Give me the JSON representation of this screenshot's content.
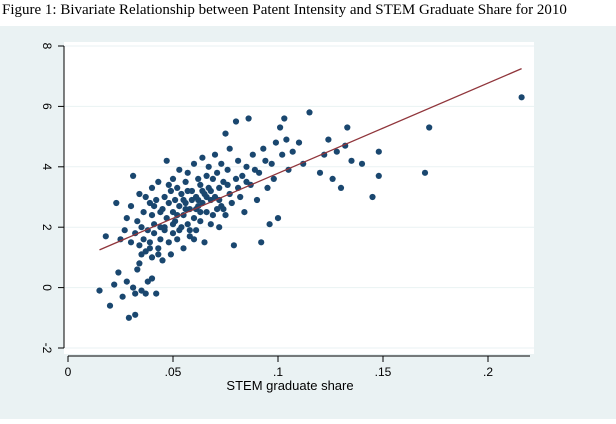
{
  "figure_title": "Figure 1: Bivariate Relationship between Patent Intensity and STEM Graduate Share for 2010",
  "chart_data": {
    "type": "scatter",
    "title": "Figure 1: Bivariate Relationship between Patent Intensity and STEM Graduate Share for 2010",
    "xlabel": "STEM graduate share",
    "ylabel": "",
    "xlim": [
      0,
      0.22
    ],
    "ylim": [
      -2,
      8
    ],
    "xticks": [
      0,
      0.05,
      0.1,
      0.15,
      0.2
    ],
    "xtick_labels": [
      "0",
      ".05",
      ".1",
      ".15",
      ".2"
    ],
    "yticks": [
      -2,
      0,
      2,
      4,
      6,
      8
    ],
    "ytick_labels": [
      "-2",
      "0",
      "2",
      "4",
      "6",
      "8"
    ],
    "grid": true,
    "legend": "none",
    "colors": {
      "background": "#eaf2f3",
      "points": "#1a476f",
      "fit_line": "#90353b",
      "grid": "#ffffff"
    },
    "fit_line": {
      "x": [
        0.015,
        0.216
      ],
      "y": [
        1.25,
        7.25
      ]
    },
    "points": [
      [
        0.015,
        -0.1
      ],
      [
        0.018,
        1.7
      ],
      [
        0.02,
        -0.6
      ],
      [
        0.022,
        0.1
      ],
      [
        0.023,
        2.8
      ],
      [
        0.024,
        0.5
      ],
      [
        0.025,
        1.6
      ],
      [
        0.026,
        -0.3
      ],
      [
        0.027,
        1.9
      ],
      [
        0.028,
        2.3
      ],
      [
        0.028,
        0.2
      ],
      [
        0.029,
        -1.0
      ],
      [
        0.03,
        1.5
      ],
      [
        0.03,
        2.7
      ],
      [
        0.031,
        0.0
      ],
      [
        0.031,
        3.7
      ],
      [
        0.032,
        -0.2
      ],
      [
        0.032,
        1.8
      ],
      [
        0.032,
        -0.9
      ],
      [
        0.033,
        2.2
      ],
      [
        0.033,
        0.6
      ],
      [
        0.034,
        3.1
      ],
      [
        0.034,
        1.4
      ],
      [
        0.035,
        2.0
      ],
      [
        0.035,
        -0.1
      ],
      [
        0.036,
        1.6
      ],
      [
        0.036,
        2.5
      ],
      [
        0.037,
        1.2
      ],
      [
        0.037,
        3.0
      ],
      [
        0.038,
        1.9
      ],
      [
        0.038,
        0.2
      ],
      [
        0.039,
        2.8
      ],
      [
        0.039,
        1.5
      ],
      [
        0.04,
        2.4
      ],
      [
        0.04,
        1.0
      ],
      [
        0.04,
        3.3
      ],
      [
        0.041,
        1.8
      ],
      [
        0.041,
        2.1
      ],
      [
        0.042,
        -0.2
      ],
      [
        0.042,
        2.9
      ],
      [
        0.043,
        1.3
      ],
      [
        0.043,
        3.5
      ],
      [
        0.044,
        2.0
      ],
      [
        0.044,
        1.6
      ],
      [
        0.045,
        2.6
      ],
      [
        0.045,
        0.9
      ],
      [
        0.046,
        3.0
      ],
      [
        0.046,
        1.9
      ],
      [
        0.047,
        4.2
      ],
      [
        0.047,
        2.3
      ],
      [
        0.048,
        1.5
      ],
      [
        0.048,
        2.8
      ],
      [
        0.049,
        3.2
      ],
      [
        0.049,
        1.1
      ],
      [
        0.05,
        2.5
      ],
      [
        0.05,
        3.6
      ],
      [
        0.05,
        1.8
      ],
      [
        0.051,
        2.9
      ],
      [
        0.051,
        2.2
      ],
      [
        0.052,
        3.3
      ],
      [
        0.052,
        1.6
      ],
      [
        0.053,
        2.7
      ],
      [
        0.053,
        3.9
      ],
      [
        0.054,
        2.0
      ],
      [
        0.054,
        3.1
      ],
      [
        0.055,
        2.4
      ],
      [
        0.055,
        1.3
      ],
      [
        0.056,
        3.5
      ],
      [
        0.056,
        2.8
      ],
      [
        0.057,
        2.1
      ],
      [
        0.057,
        3.8
      ],
      [
        0.058,
        2.6
      ],
      [
        0.058,
        1.7
      ],
      [
        0.059,
        3.2
      ],
      [
        0.059,
        2.9
      ],
      [
        0.06,
        4.1
      ],
      [
        0.06,
        2.3
      ],
      [
        0.061,
        3.0
      ],
      [
        0.061,
        1.9
      ],
      [
        0.062,
        3.6
      ],
      [
        0.062,
        2.7
      ],
      [
        0.063,
        2.2
      ],
      [
        0.063,
        3.4
      ],
      [
        0.064,
        4.3
      ],
      [
        0.064,
        2.8
      ],
      [
        0.065,
        3.1
      ],
      [
        0.065,
        1.5
      ],
      [
        0.066,
        3.7
      ],
      [
        0.066,
        2.5
      ],
      [
        0.067,
        3.3
      ],
      [
        0.067,
        4.0
      ],
      [
        0.068,
        2.9
      ],
      [
        0.068,
        2.1
      ],
      [
        0.069,
        3.6
      ],
      [
        0.07,
        3.0
      ],
      [
        0.07,
        4.4
      ],
      [
        0.071,
        2.6
      ],
      [
        0.071,
        3.8
      ],
      [
        0.072,
        2.0
      ],
      [
        0.072,
        3.3
      ],
      [
        0.073,
        4.1
      ],
      [
        0.073,
        2.7
      ],
      [
        0.074,
        3.5
      ],
      [
        0.075,
        5.1
      ],
      [
        0.075,
        2.4
      ],
      [
        0.076,
        3.9
      ],
      [
        0.077,
        3.1
      ],
      [
        0.077,
        4.6
      ],
      [
        0.078,
        2.8
      ],
      [
        0.079,
        1.4
      ],
      [
        0.08,
        3.6
      ],
      [
        0.08,
        5.5
      ],
      [
        0.081,
        4.2
      ],
      [
        0.082,
        3.0
      ],
      [
        0.083,
        3.7
      ],
      [
        0.084,
        2.5
      ],
      [
        0.085,
        4.0
      ],
      [
        0.086,
        5.6
      ],
      [
        0.087,
        3.4
      ],
      [
        0.088,
        4.4
      ],
      [
        0.09,
        2.9
      ],
      [
        0.091,
        3.8
      ],
      [
        0.092,
        1.5
      ],
      [
        0.093,
        4.6
      ],
      [
        0.095,
        3.3
      ],
      [
        0.096,
        2.1
      ],
      [
        0.097,
        4.1
      ],
      [
        0.098,
        3.6
      ],
      [
        0.099,
        4.8
      ],
      [
        0.1,
        2.3
      ],
      [
        0.101,
        5.3
      ],
      [
        0.102,
        4.4
      ],
      [
        0.103,
        5.6
      ],
      [
        0.104,
        4.9
      ],
      [
        0.105,
        3.9
      ],
      [
        0.107,
        4.5
      ],
      [
        0.11,
        4.8
      ],
      [
        0.112,
        4.1
      ],
      [
        0.115,
        5.8
      ],
      [
        0.12,
        3.8
      ],
      [
        0.122,
        4.4
      ],
      [
        0.124,
        4.9
      ],
      [
        0.126,
        3.6
      ],
      [
        0.128,
        4.5
      ],
      [
        0.13,
        3.3
      ],
      [
        0.132,
        4.7
      ],
      [
        0.133,
        5.3
      ],
      [
        0.135,
        4.2
      ],
      [
        0.14,
        4.1
      ],
      [
        0.145,
        3.0
      ],
      [
        0.148,
        3.7
      ],
      [
        0.148,
        4.5
      ],
      [
        0.17,
        3.8
      ],
      [
        0.172,
        5.3
      ],
      [
        0.216,
        6.3
      ],
      [
        0.043,
        1.1
      ],
      [
        0.052,
        2.4
      ],
      [
        0.058,
        1.9
      ],
      [
        0.063,
        2.5
      ],
      [
        0.069,
        2.4
      ],
      [
        0.074,
        2.6
      ],
      [
        0.046,
        2.0
      ],
      [
        0.055,
        2.9
      ],
      [
        0.061,
        2.6
      ],
      [
        0.066,
        3.0
      ],
      [
        0.048,
        3.4
      ],
      [
        0.057,
        3.2
      ],
      [
        0.064,
        3.2
      ],
      [
        0.041,
        2.7
      ],
      [
        0.053,
        1.9
      ],
      [
        0.06,
        1.6
      ],
      [
        0.035,
        1.1
      ],
      [
        0.039,
        1.3
      ],
      [
        0.044,
        2.5
      ],
      [
        0.05,
        2.1
      ],
      [
        0.056,
        2.6
      ],
      [
        0.062,
        2.9
      ],
      [
        0.068,
        3.2
      ],
      [
        0.072,
        2.9
      ],
      [
        0.076,
        3.4
      ],
      [
        0.081,
        3.3
      ],
      [
        0.085,
        3.5
      ],
      [
        0.089,
        3.9
      ],
      [
        0.094,
        4.2
      ],
      [
        0.037,
        -0.2
      ],
      [
        0.034,
        0.8
      ],
      [
        0.04,
        0.3
      ]
    ]
  }
}
